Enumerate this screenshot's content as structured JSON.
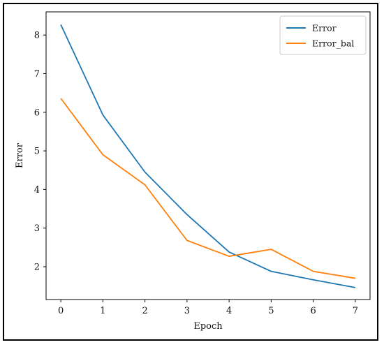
{
  "chart_data": {
    "type": "line",
    "title": "",
    "xlabel": "Epoch",
    "ylabel": "Error",
    "x": [
      0,
      1,
      2,
      3,
      4,
      5,
      6,
      7
    ],
    "xticks": [
      "0",
      "1",
      "2",
      "3",
      "4",
      "5",
      "6",
      "7"
    ],
    "yticks": [
      "2",
      "3",
      "4",
      "5",
      "6",
      "7",
      "8"
    ],
    "xlim": [
      -0.35,
      7.35
    ],
    "ylim": [
      1.15,
      8.6
    ],
    "grid": false,
    "legend_position": "top-right",
    "series": [
      {
        "name": "Error",
        "color": "#1f77b4",
        "values": [
          8.27,
          5.93,
          4.45,
          3.35,
          2.38,
          1.88,
          1.66,
          1.46
        ]
      },
      {
        "name": "Error_bal",
        "color": "#ff7f0e",
        "values": [
          6.36,
          4.9,
          4.12,
          2.68,
          2.27,
          2.45,
          1.88,
          1.7
        ]
      }
    ]
  }
}
